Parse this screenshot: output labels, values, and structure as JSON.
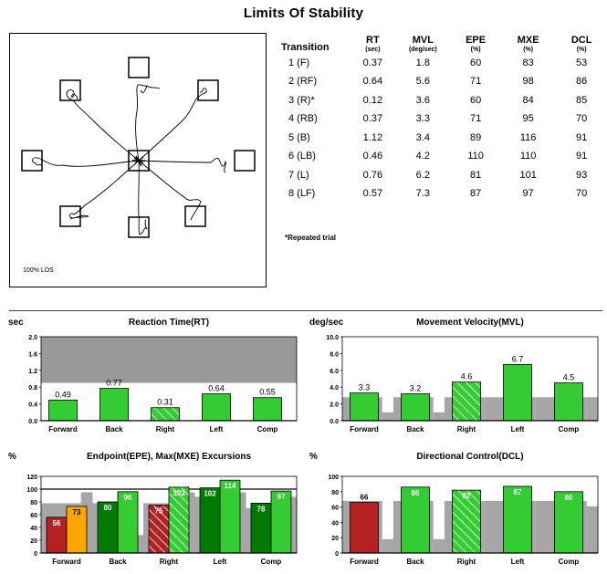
{
  "page_title": "Limits Of Stability",
  "trace": {
    "label": "100% LOS"
  },
  "table": {
    "headers": [
      {
        "label": "Transition",
        "unit": ""
      },
      {
        "label": "RT",
        "unit": "(sec)"
      },
      {
        "label": "MVL",
        "unit": "(deg/sec)"
      },
      {
        "label": "EPE",
        "unit": "(%)"
      },
      {
        "label": "MXE",
        "unit": "(%)"
      },
      {
        "label": "DCL",
        "unit": "(%)"
      }
    ],
    "rows": [
      [
        "1  (F)",
        "0.37",
        "1.8",
        "60",
        "83",
        "53"
      ],
      [
        "2  (RF)",
        "0.64",
        "5.6",
        "71",
        "98",
        "86"
      ],
      [
        "3  (R)*",
        "0.12",
        "3.6",
        "60",
        "84",
        "85"
      ],
      [
        "4  (RB)",
        "0.37",
        "3.3",
        "71",
        "95",
        "70"
      ],
      [
        "5  (B)",
        "1.12",
        "3.4",
        "89",
        "116",
        "91"
      ],
      [
        "6  (LB)",
        "0.46",
        "4.2",
        "110",
        "110",
        "91"
      ],
      [
        "7  (L)",
        "0.76",
        "6.2",
        "81",
        "101",
        "93"
      ],
      [
        "8  (LF)",
        "0.57",
        "7.3",
        "87",
        "97",
        "70"
      ]
    ],
    "footnote": "*Repeated trial"
  },
  "colors": {
    "green": "#33cc33",
    "dark_green": "#007a00",
    "red": "#b22222",
    "orange": "#ffa500",
    "gray": "#a6a6a6",
    "dark_gray": "#999999"
  },
  "chart_data": [
    {
      "id": "rt",
      "type": "bar",
      "unit_label": "sec",
      "title": "Reaction Time(RT)",
      "categories": [
        "Forward",
        "Back",
        "Right",
        "Left",
        "Comp"
      ],
      "yticks": [
        "0.0",
        "0.4",
        "0.8",
        "1.2",
        "1.6",
        "2.0"
      ],
      "ylim": [
        0,
        2.0
      ],
      "abnormal_region_from": 0.9,
      "series": [
        {
          "values": [
            0.49,
            0.77,
            0.31,
            0.64,
            0.55
          ],
          "labels": [
            "0.49",
            "0.77",
            "0.31",
            "0.64",
            "0.55"
          ],
          "hatched": [
            false,
            false,
            true,
            false,
            false
          ]
        }
      ]
    },
    {
      "id": "mvl",
      "type": "bar",
      "unit_label": "deg/sec",
      "title": "Movement Velocity(MVL)",
      "categories": [
        "Forward",
        "Back",
        "Right",
        "Left",
        "Comp"
      ],
      "yticks": [
        "0.0",
        "2.0",
        "4.0",
        "6.0",
        "8.0",
        "10.0"
      ],
      "ylim": [
        0,
        10.0
      ],
      "norm_steps": [
        [
          2.8,
          1.0
        ],
        [
          2.8,
          1.0
        ],
        [
          2.8,
          2.8
        ],
        [
          2.8,
          2.8
        ],
        [
          2.8,
          2.8
        ]
      ],
      "series": [
        {
          "values": [
            3.3,
            3.2,
            4.6,
            6.7,
            4.5
          ],
          "labels": [
            "3.3",
            "3.2",
            "4.6",
            "6.7",
            "4.5"
          ],
          "hatched": [
            false,
            false,
            true,
            false,
            false
          ]
        }
      ]
    },
    {
      "id": "epe",
      "type": "bar",
      "unit_label": "%",
      "title": "Endpoint(EPE), Max(MXE) Excursions",
      "categories": [
        "Forward",
        "Back",
        "Right",
        "Left",
        "Comp"
      ],
      "yticks": [
        "0",
        "20",
        "40",
        "60",
        "80",
        "100",
        "120"
      ],
      "ylim": [
        0,
        120
      ],
      "reference_line": 100,
      "norm_steps": [
        [
          78,
          95
        ],
        [
          78,
          28
        ],
        [
          78,
          95
        ],
        [
          88,
          95
        ],
        [
          70,
          88
        ]
      ],
      "series": [
        {
          "name_key": "EPE",
          "values": [
            56,
            80,
            75,
            102,
            78
          ],
          "labels": [
            "56",
            "80",
            "75",
            "102",
            "78"
          ],
          "fills": [
            "red",
            "dark_green",
            "red",
            "dark_green",
            "dark_green"
          ],
          "hatched": [
            false,
            false,
            true,
            false,
            false
          ]
        },
        {
          "name_key": "MXE",
          "values": [
            73,
            96,
            103,
            114,
            97
          ],
          "labels": [
            "73",
            "96",
            "103",
            "114",
            "97"
          ],
          "fills": [
            "orange",
            "green",
            "green",
            "green",
            "green"
          ],
          "hatched": [
            false,
            false,
            true,
            false,
            false
          ]
        }
      ]
    },
    {
      "id": "dcl",
      "type": "bar",
      "unit_label": "%",
      "title": "Directional Control(DCL)",
      "categories": [
        "Forward",
        "Back",
        "Right",
        "Left",
        "Comp"
      ],
      "yticks": [
        "0",
        "20",
        "40",
        "60",
        "80",
        "100"
      ],
      "ylim": [
        0,
        100
      ],
      "norm_steps": [
        [
          68,
          18
        ],
        [
          68,
          18
        ],
        [
          68,
          68
        ],
        [
          68,
          68
        ],
        [
          68,
          61
        ]
      ],
      "series": [
        {
          "values": [
            66,
            86,
            82,
            87,
            80
          ],
          "labels": [
            "66",
            "86",
            "82",
            "87",
            "80"
          ],
          "fills": [
            "red",
            "green",
            "green",
            "green",
            "green"
          ],
          "hatched": [
            false,
            false,
            true,
            false,
            false
          ]
        }
      ]
    }
  ]
}
